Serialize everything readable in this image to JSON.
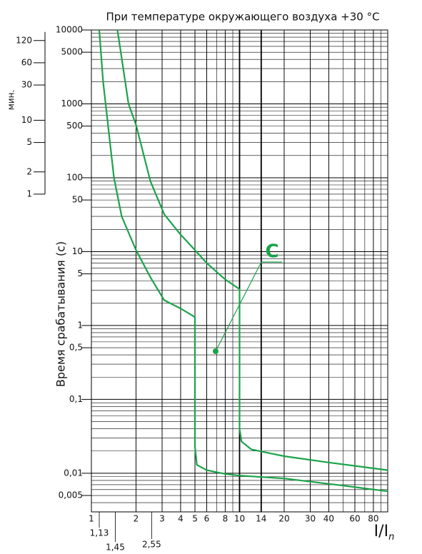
{
  "chart_data": {
    "type": "line",
    "title": "При температуре окружающего воздуха +30 °C",
    "y_label": "Время срабатывания (с)",
    "x_label": "I/I",
    "x_label_sub": "n",
    "log_x": true,
    "log_y": true,
    "grid": true,
    "xlim": [
      1,
      100
    ],
    "ylim": [
      0.003,
      10000
    ],
    "xticks": [
      1,
      2,
      3,
      4,
      5,
      6,
      8,
      10,
      14,
      20,
      30,
      40,
      60,
      80
    ],
    "xticks_extra": [
      {
        "value": 1.13,
        "label": "1,13"
      },
      {
        "value": 1.45,
        "label": "1,45"
      },
      {
        "value": 2.55,
        "label": "2,55"
      }
    ],
    "yticks": [
      10000,
      5000,
      1000,
      500,
      100,
      50,
      10,
      5,
      1,
      {
        "value": 0.5,
        "label": "0,5"
      },
      {
        "value": 0.1,
        "label": "0,1"
      },
      {
        "value": 0.01,
        "label": "0,01"
      },
      {
        "value": 0.005,
        "label": "0,005"
      }
    ],
    "minutes_label": "мин.",
    "minute_ticks": [
      {
        "value": 7200,
        "label": "120"
      },
      {
        "value": 3600,
        "label": "60"
      },
      {
        "value": 1800,
        "label": "30"
      },
      {
        "value": 600,
        "label": "10"
      },
      {
        "value": 300,
        "label": "5"
      },
      {
        "value": 120,
        "label": "2"
      },
      {
        "value": 60,
        "label": "1"
      }
    ],
    "annotation": "C",
    "series": [
      {
        "color": "#1aa34a",
        "x": [
          1.5,
          1.78,
          2,
          2.5,
          3.1,
          4,
          4.7,
          6,
          8,
          10,
          10,
          10.3,
          12,
          20,
          40,
          100
        ],
        "values": [
          10000,
          1000,
          520,
          90,
          32,
          17,
          12,
          7,
          4.2,
          3.1,
          0.04,
          0.027,
          0.021,
          0.017,
          0.014,
          0.011
        ]
      },
      {
        "color": "#1aa34a",
        "x": [
          1.13,
          1.2,
          1.42,
          1.6,
          2,
          2.5,
          3.1,
          4,
          5,
          5,
          5.15,
          6,
          8,
          10,
          20,
          50,
          100
        ],
        "values": [
          10000,
          2000,
          100,
          30,
          10.5,
          4.5,
          2.2,
          1.7,
          1.3,
          0.023,
          0.013,
          0.011,
          0.0098,
          0.0093,
          0.0085,
          0.0068,
          0.0057
        ]
      }
    ]
  }
}
